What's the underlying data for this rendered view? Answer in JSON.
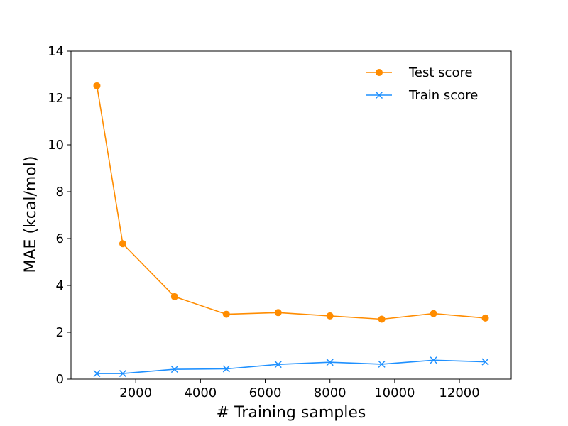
{
  "chart_data": {
    "type": "line",
    "xlabel": "# Training samples",
    "ylabel": "MAE (kcal/mol)",
    "xlim": [
      0,
      13600
    ],
    "ylim": [
      0,
      14
    ],
    "xticks": [
      2000,
      4000,
      6000,
      8000,
      10000,
      12000
    ],
    "yticks": [
      0,
      2,
      4,
      6,
      8,
      10,
      12,
      14
    ],
    "grid": false,
    "legend_position": "top-right",
    "series": [
      {
        "name": "Test score",
        "color": "#ff8c00",
        "marker": "circle",
        "x": [
          800,
          1600,
          3200,
          4800,
          6400,
          8000,
          9600,
          11200,
          12800
        ],
        "y": [
          12.52,
          5.78,
          3.52,
          2.77,
          2.84,
          2.7,
          2.56,
          2.8,
          2.61
        ]
      },
      {
        "name": "Train score",
        "color": "#1e90ff",
        "marker": "x",
        "x": [
          800,
          1600,
          3200,
          4800,
          6400,
          8000,
          9600,
          11200,
          12800
        ],
        "y": [
          0.24,
          0.24,
          0.42,
          0.44,
          0.63,
          0.72,
          0.64,
          0.81,
          0.74
        ]
      }
    ]
  }
}
